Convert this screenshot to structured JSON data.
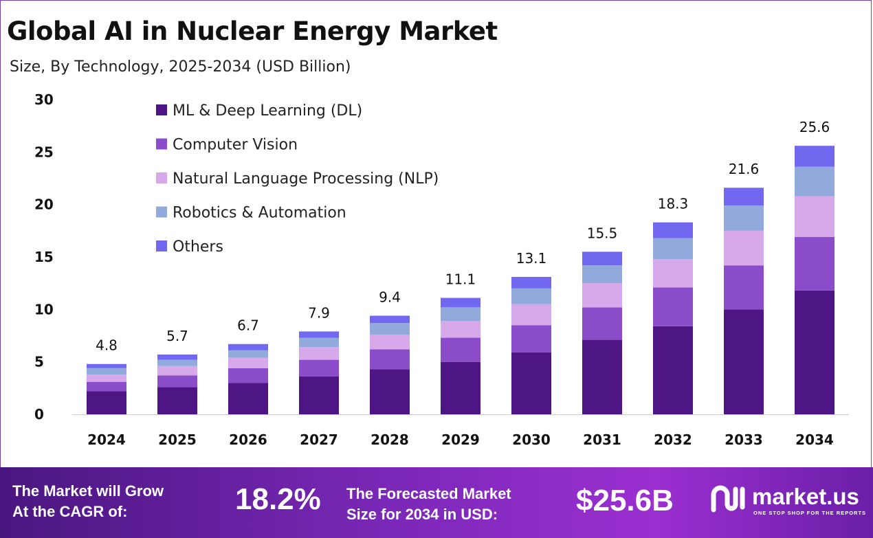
{
  "header": {
    "title": "Global AI in Nuclear Energy Market",
    "subtitle": "Size, By Technology, 2025-2034 (USD Billion)"
  },
  "chart_data": {
    "type": "bar",
    "stacked": true,
    "categories": [
      "2024",
      "2025",
      "2026",
      "2027",
      "2028",
      "2029",
      "2030",
      "2031",
      "2032",
      "2033",
      "2034"
    ],
    "totals": [
      4.8,
      5.7,
      6.7,
      7.9,
      9.4,
      11.1,
      13.1,
      15.5,
      18.3,
      21.6,
      25.6
    ],
    "series": [
      {
        "name": "ML & Deep Learning (DL)",
        "color": "#4e1584",
        "values": [
          2.2,
          2.6,
          3.0,
          3.6,
          4.3,
          5.0,
          5.9,
          7.1,
          8.4,
          10.0,
          11.8
        ]
      },
      {
        "name": "Computer Vision",
        "color": "#8b4cc9",
        "values": [
          0.9,
          1.1,
          1.4,
          1.6,
          1.9,
          2.3,
          2.6,
          3.1,
          3.7,
          4.2,
          5.1
        ]
      },
      {
        "name": "Natural Language Processing (NLP)",
        "color": "#d7a9ea",
        "values": [
          0.7,
          0.9,
          1.0,
          1.2,
          1.4,
          1.6,
          2.0,
          2.3,
          2.7,
          3.3,
          3.9
        ]
      },
      {
        "name": "Robotics & Automation",
        "color": "#92a9dc",
        "values": [
          0.6,
          0.6,
          0.7,
          0.9,
          1.1,
          1.3,
          1.5,
          1.7,
          2.0,
          2.4,
          2.8
        ]
      },
      {
        "name": "Others",
        "color": "#7267ef",
        "values": [
          0.4,
          0.5,
          0.6,
          0.6,
          0.7,
          0.9,
          1.1,
          1.3,
          1.5,
          1.7,
          2.0
        ]
      }
    ],
    "ylim": [
      0,
      30
    ],
    "yticks": [
      0,
      5,
      10,
      15,
      20,
      25,
      30
    ],
    "xlabel": "",
    "ylabel": "",
    "grid": false,
    "legend": "top-left"
  },
  "footer": {
    "cagr_label_line1": "The Market will Grow",
    "cagr_label_line2": "At the CAGR of:",
    "cagr_value": "18.2%",
    "forecast_label_line1": "The Forecasted Market",
    "forecast_label_line2": "Size for 2034 in USD:",
    "forecast_value": "$25.6B",
    "brand_name": "market.us",
    "brand_tagline": "ONE STOP SHOP FOR THE REPORTS"
  }
}
